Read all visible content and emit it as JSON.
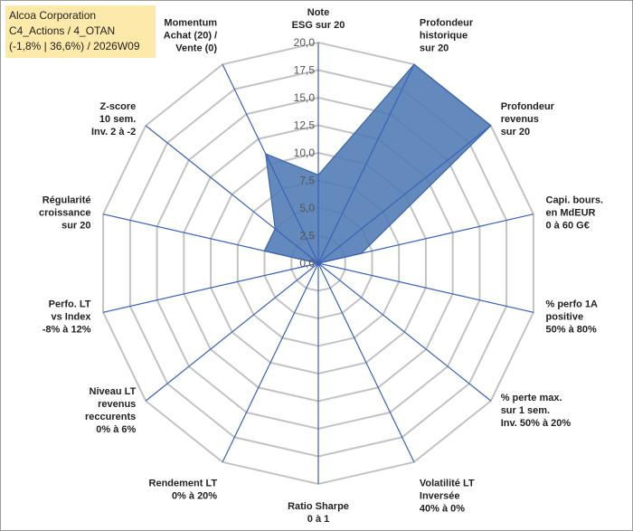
{
  "header": {
    "line1": "Alcoa Corporation",
    "line2": "C4_Actions / 4_OTAN",
    "line3": "(-1,8% | 36,6%) / 2026W09"
  },
  "colors": {
    "fill": "#4f7ab4",
    "stroke": "#3a66a7",
    "grid": "#c3c3c3",
    "spoke": "#3b62b5",
    "title_bg": "#fde9a9"
  },
  "chart_data": {
    "type": "radar",
    "rmin": 0,
    "rmax": 20,
    "ticks": [
      "0,0",
      "2,5",
      "5,0",
      "7,5",
      "10,0",
      "12,5",
      "15,0",
      "17,5",
      "20,0"
    ],
    "axes": [
      [
        "Note",
        "ESG sur 20"
      ],
      [
        "Profondeur",
        "historique",
        "sur 20"
      ],
      [
        "Profondeur",
        "revenus",
        "sur 20"
      ],
      [
        "Capi. bours.",
        "en MdEUR",
        "0 à 60 G€"
      ],
      [
        "% perfo 1A",
        "positive",
        "50% à 80%"
      ],
      [
        "% perte max.",
        "sur 1 sem.",
        "Inv. 50% à 20%"
      ],
      [
        "Volatilité LT",
        "Inversée",
        "40% à 0%"
      ],
      [
        "Ratio Sharpe",
        "0 à 1"
      ],
      [
        "Rendement LT",
        "0% à 20%"
      ],
      [
        "Niveau LT",
        "revenus",
        "reccurents",
        "0% à 6%"
      ],
      [
        "Perfo. LT",
        "vs Index",
        "-8% à 12%"
      ],
      [
        "Régularité",
        "croissance",
        "sur 20"
      ],
      [
        "Z-score",
        "10 sem.",
        "Inv. 2 à -2"
      ],
      [
        "Momentum",
        "Achat (20) /",
        "Vente (0)"
      ]
    ],
    "values": [
      8,
      20,
      20,
      4,
      0,
      0,
      0,
      0,
      0,
      0,
      0,
      5,
      5,
      11
    ]
  }
}
